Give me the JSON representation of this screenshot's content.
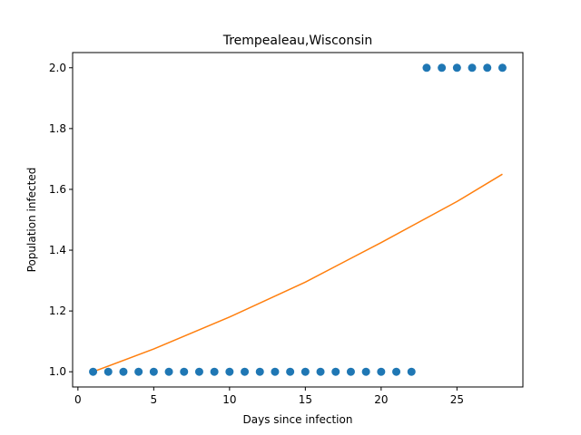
{
  "chart_data": {
    "type": "scatter",
    "title": "Trempealeau,Wisconsin",
    "xlabel": "Days since infection",
    "ylabel": "Population infected",
    "xlim": [
      -0.35,
      29.35
    ],
    "ylim": [
      0.95,
      2.05
    ],
    "xticks": [
      0,
      5,
      10,
      15,
      20,
      25
    ],
    "yticks": [
      "1.0",
      "1.2",
      "1.4",
      "1.6",
      "1.8",
      "2.0"
    ],
    "grid": false,
    "series": [
      {
        "kind": "scatter",
        "color": "#1f77b4",
        "x": [
          1,
          2,
          3,
          4,
          5,
          6,
          7,
          8,
          9,
          10,
          11,
          12,
          13,
          14,
          15,
          16,
          17,
          18,
          19,
          20,
          21,
          22,
          23,
          24,
          25,
          26,
          27,
          28
        ],
        "y": [
          1,
          1,
          1,
          1,
          1,
          1,
          1,
          1,
          1,
          1,
          1,
          1,
          1,
          1,
          1,
          1,
          1,
          1,
          1,
          1,
          1,
          1,
          2,
          2,
          2,
          2,
          2,
          2
        ]
      },
      {
        "kind": "line",
        "color": "#ff7f0e",
        "x": [
          1,
          5,
          10,
          15,
          20,
          25,
          28
        ],
        "y": [
          1.0,
          1.075,
          1.18,
          1.295,
          1.425,
          1.56,
          1.65
        ]
      }
    ]
  }
}
